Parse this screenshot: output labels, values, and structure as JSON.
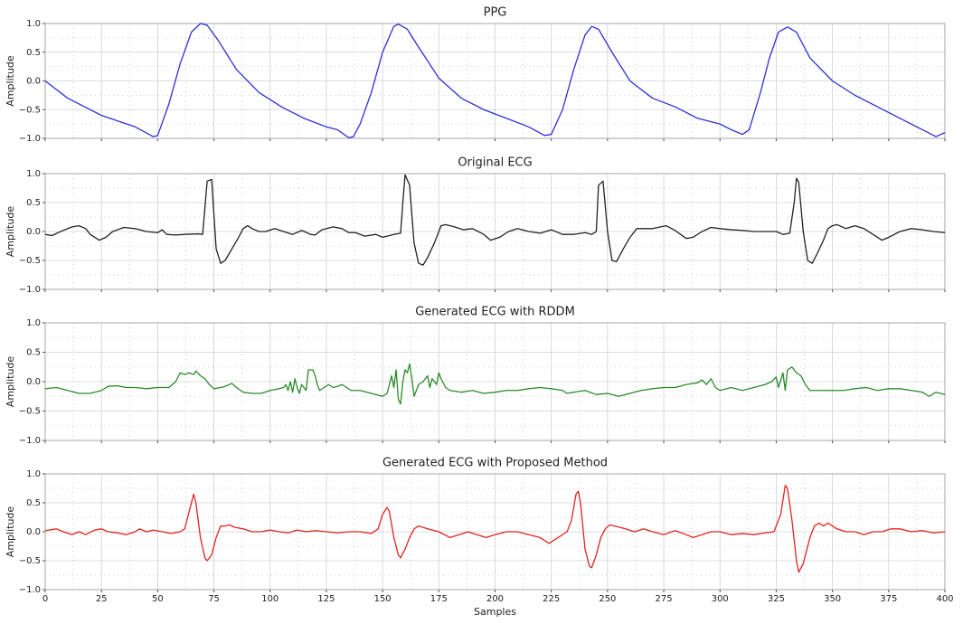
{
  "chart_data": [
    {
      "type": "line",
      "title": "PPG",
      "ylabel": "Amplitude",
      "color": "#2f2fd6",
      "grid": true,
      "xlim": [
        0,
        400
      ],
      "xticks": [
        0,
        25,
        50,
        75,
        100,
        125,
        150,
        175,
        200,
        225,
        250,
        275,
        300,
        325,
        350,
        375,
        400
      ],
      "ylim": [
        -1,
        1
      ],
      "yticks": [
        {
          "value": -1,
          "label": "−1.0"
        },
        {
          "value": -0.5,
          "label": "−0.5"
        },
        {
          "value": 0,
          "label": "0.0"
        },
        {
          "value": 0.5,
          "label": "0.5"
        },
        {
          "value": 1,
          "label": "1.0"
        }
      ],
      "x": [
        0,
        10,
        25,
        40,
        48,
        50,
        55,
        60,
        65,
        69,
        72,
        77,
        85,
        95,
        105,
        115,
        125,
        130,
        135,
        137,
        140,
        145,
        150,
        155,
        157,
        161,
        165,
        175,
        185,
        195,
        205,
        215,
        222,
        225,
        230,
        235,
        240,
        243,
        246,
        252,
        260,
        270,
        280,
        290,
        300,
        305,
        310,
        313,
        318,
        322,
        326,
        330,
        334,
        340,
        350,
        360,
        370,
        380,
        390,
        396,
        400
      ],
      "values": [
        0,
        -0.3,
        -0.6,
        -0.8,
        -0.97,
        -0.95,
        -0.4,
        0.3,
        0.85,
        1.0,
        0.97,
        0.7,
        0.2,
        -0.2,
        -0.45,
        -0.65,
        -0.8,
        -0.85,
        -0.99,
        -0.97,
        -0.75,
        -0.2,
        0.5,
        0.95,
        0.99,
        0.9,
        0.65,
        0.05,
        -0.3,
        -0.5,
        -0.65,
        -0.8,
        -0.95,
        -0.93,
        -0.5,
        0.2,
        0.8,
        0.95,
        0.9,
        0.5,
        0.0,
        -0.3,
        -0.45,
        -0.65,
        -0.75,
        -0.85,
        -0.93,
        -0.85,
        -0.2,
        0.4,
        0.85,
        0.94,
        0.85,
        0.4,
        0.0,
        -0.25,
        -0.45,
        -0.65,
        -0.85,
        -0.97,
        -0.9
      ]
    },
    {
      "type": "line",
      "title": "Original ECG",
      "ylabel": "Amplitude",
      "color": "#222222",
      "grid": true,
      "xlim": [
        0,
        400
      ],
      "xticks": [
        0,
        25,
        50,
        75,
        100,
        125,
        150,
        175,
        200,
        225,
        250,
        275,
        300,
        325,
        350,
        375,
        400
      ],
      "ylim": [
        -1,
        1
      ],
      "yticks": [
        {
          "value": -1,
          "label": "−1.0"
        },
        {
          "value": -0.5,
          "label": "−0.5"
        },
        {
          "value": 0,
          "label": "0.0"
        },
        {
          "value": 0.5,
          "label": "0.5"
        },
        {
          "value": 1,
          "label": "1.0"
        }
      ],
      "x": [
        0,
        3,
        8,
        12,
        15,
        18,
        20,
        24,
        27,
        30,
        35,
        40,
        45,
        50,
        52,
        54,
        58,
        62,
        68,
        70,
        72,
        74,
        76,
        78,
        80,
        83,
        86,
        88,
        90,
        92,
        95,
        98,
        102,
        106,
        110,
        114,
        118,
        120,
        123,
        128,
        132,
        135,
        138,
        142,
        147,
        150,
        155,
        158,
        159,
        160,
        162,
        164,
        166,
        168,
        170,
        173,
        176,
        178,
        182,
        186,
        190,
        195,
        198,
        202,
        206,
        210,
        215,
        220,
        225,
        230,
        235,
        240,
        243,
        245,
        246,
        248,
        250,
        252,
        254,
        257,
        260,
        263,
        266,
        270,
        276,
        280,
        285,
        288,
        292,
        296,
        300,
        305,
        310,
        315,
        320,
        325,
        328,
        331,
        333,
        334,
        335,
        337,
        339,
        341,
        343,
        346,
        348,
        350,
        352,
        356,
        360,
        364,
        368,
        372,
        375,
        380,
        385,
        390,
        395,
        400
      ],
      "values": [
        -0.05,
        -0.07,
        0.02,
        0.08,
        0.1,
        0.05,
        -0.05,
        -0.15,
        -0.1,
        0.0,
        0.07,
        0.05,
        0.0,
        -0.02,
        0.03,
        -0.05,
        -0.06,
        -0.05,
        -0.04,
        -0.05,
        0.87,
        0.9,
        -0.3,
        -0.55,
        -0.5,
        -0.3,
        -0.1,
        0.05,
        0.1,
        0.05,
        0.0,
        0.0,
        0.05,
        0.0,
        -0.05,
        0.02,
        -0.05,
        -0.06,
        0.03,
        0.08,
        0.05,
        -0.02,
        -0.02,
        -0.08,
        -0.05,
        -0.1,
        -0.05,
        -0.03,
        0.5,
        0.98,
        0.8,
        -0.2,
        -0.55,
        -0.58,
        -0.45,
        -0.2,
        0.1,
        0.12,
        0.08,
        0.03,
        0.05,
        -0.05,
        -0.15,
        -0.1,
        0.0,
        0.05,
        0.0,
        -0.03,
        0.03,
        -0.05,
        -0.05,
        -0.02,
        -0.05,
        0.0,
        0.8,
        0.87,
        0.0,
        -0.5,
        -0.52,
        -0.3,
        -0.1,
        0.05,
        0.05,
        0.05,
        0.1,
        0.02,
        -0.12,
        -0.1,
        0.0,
        0.07,
        0.05,
        0.03,
        0.02,
        0.0,
        0.0,
        0.0,
        -0.05,
        -0.03,
        0.5,
        0.92,
        0.85,
        0.0,
        -0.5,
        -0.55,
        -0.4,
        -0.15,
        0.05,
        0.1,
        0.12,
        0.05,
        0.1,
        0.05,
        -0.05,
        -0.15,
        -0.1,
        0.0,
        0.05,
        0.03,
        0.0,
        -0.02
      ]
    },
    {
      "type": "line",
      "title": "Generated ECG with RDDM",
      "ylabel": "Amplitude",
      "color": "#2a8a2a",
      "grid": true,
      "xlim": [
        0,
        400
      ],
      "xticks": [
        0,
        25,
        50,
        75,
        100,
        125,
        150,
        175,
        200,
        225,
        250,
        275,
        300,
        325,
        350,
        375,
        400
      ],
      "ylim": [
        -1,
        1
      ],
      "yticks": [
        {
          "value": -1,
          "label": "−1.0"
        },
        {
          "value": -0.5,
          "label": "−0.5"
        },
        {
          "value": 0,
          "label": "0.0"
        },
        {
          "value": 0.5,
          "label": "0.5"
        },
        {
          "value": 1,
          "label": "1.0"
        }
      ],
      "x": [
        0,
        5,
        10,
        15,
        20,
        25,
        28,
        32,
        36,
        40,
        45,
        50,
        55,
        58,
        60,
        62,
        64,
        66,
        67,
        69,
        71,
        73,
        75,
        78,
        80,
        83,
        85,
        88,
        92,
        96,
        100,
        104,
        106,
        107,
        108,
        109,
        110,
        111,
        112,
        113,
        114,
        116,
        117,
        119,
        120,
        121,
        122,
        124,
        126,
        128,
        130,
        132,
        134,
        136,
        140,
        145,
        150,
        152,
        154,
        155,
        156,
        157,
        158,
        159,
        160,
        161,
        162,
        163,
        164,
        166,
        168,
        170,
        171,
        172,
        174,
        175,
        176,
        178,
        180,
        185,
        190,
        195,
        200,
        205,
        210,
        215,
        220,
        225,
        230,
        232,
        235,
        240,
        245,
        250,
        255,
        260,
        265,
        270,
        275,
        280,
        285,
        290,
        292,
        294,
        296,
        298,
        300,
        305,
        310,
        315,
        320,
        323,
        325,
        326,
        328,
        329,
        330,
        332,
        334,
        336,
        338,
        340,
        345,
        350,
        355,
        360,
        365,
        370,
        375,
        380,
        385,
        390,
        393,
        396,
        400
      ],
      "values": [
        -0.12,
        -0.1,
        -0.15,
        -0.2,
        -0.2,
        -0.15,
        -0.08,
        -0.07,
        -0.1,
        -0.1,
        -0.12,
        -0.1,
        -0.1,
        0.0,
        0.15,
        0.12,
        0.15,
        0.12,
        0.18,
        0.1,
        0.05,
        -0.05,
        -0.12,
        -0.1,
        -0.08,
        -0.03,
        -0.1,
        -0.18,
        -0.2,
        -0.2,
        -0.15,
        -0.12,
        -0.1,
        -0.05,
        -0.15,
        0.0,
        -0.18,
        0.05,
        -0.1,
        -0.2,
        -0.05,
        -0.15,
        0.2,
        0.2,
        0.1,
        -0.05,
        -0.15,
        -0.1,
        -0.05,
        -0.1,
        -0.08,
        -0.05,
        -0.1,
        -0.15,
        -0.15,
        -0.2,
        -0.25,
        -0.2,
        0.1,
        -0.1,
        0.2,
        -0.3,
        -0.38,
        0.0,
        0.2,
        0.15,
        0.3,
        0.05,
        -0.25,
        -0.05,
        0.0,
        0.1,
        -0.1,
        0.05,
        -0.05,
        0.15,
        0.05,
        -0.1,
        -0.15,
        -0.18,
        -0.15,
        -0.2,
        -0.18,
        -0.15,
        -0.15,
        -0.12,
        -0.1,
        -0.12,
        -0.15,
        -0.2,
        -0.18,
        -0.15,
        -0.22,
        -0.2,
        -0.25,
        -0.2,
        -0.15,
        -0.12,
        -0.1,
        -0.1,
        -0.05,
        -0.02,
        0.03,
        -0.05,
        0.05,
        -0.1,
        -0.15,
        -0.1,
        -0.15,
        -0.1,
        -0.05,
        0.0,
        0.08,
        -0.1,
        0.15,
        -0.15,
        0.2,
        0.25,
        0.15,
        0.1,
        -0.05,
        -0.15,
        -0.15,
        -0.15,
        -0.15,
        -0.12,
        -0.1,
        -0.15,
        -0.12,
        -0.12,
        -0.15,
        -0.18,
        -0.25,
        -0.18,
        -0.22
      ]
    },
    {
      "type": "line",
      "title": "Generated ECG with Proposed Method",
      "ylabel": "Amplitude",
      "xlabel": "Samples",
      "color": "#e0241f",
      "grid": true,
      "xlim": [
        0,
        400
      ],
      "xticks": [
        0,
        25,
        50,
        75,
        100,
        125,
        150,
        175,
        200,
        225,
        250,
        275,
        300,
        325,
        350,
        375,
        400
      ],
      "ylim": [
        -1,
        1
      ],
      "yticks": [
        {
          "value": -1,
          "label": "−1.0"
        },
        {
          "value": -0.5,
          "label": "−0.5"
        },
        {
          "value": 0,
          "label": "0.0"
        },
        {
          "value": 0.5,
          "label": "0.5"
        },
        {
          "value": 1,
          "label": "1.0"
        }
      ],
      "x": [
        0,
        5,
        8,
        12,
        15,
        18,
        22,
        25,
        28,
        32,
        36,
        40,
        42,
        45,
        48,
        52,
        56,
        60,
        62,
        64,
        66,
        67,
        69,
        71,
        72,
        74,
        76,
        78,
        80,
        82,
        84,
        88,
        92,
        96,
        100,
        104,
        108,
        112,
        116,
        120,
        125,
        130,
        135,
        140,
        145,
        148,
        150,
        152,
        153,
        155,
        157,
        158,
        160,
        162,
        164,
        166,
        170,
        175,
        180,
        184,
        188,
        192,
        196,
        200,
        205,
        210,
        215,
        220,
        224,
        228,
        232,
        234,
        236,
        237,
        238,
        240,
        242,
        243,
        245,
        247,
        249,
        251,
        253,
        258,
        262,
        266,
        270,
        275,
        280,
        285,
        288,
        292,
        296,
        300,
        305,
        310,
        315,
        320,
        324,
        327,
        329,
        330,
        332,
        334,
        335,
        337,
        340,
        342,
        344,
        346,
        348,
        352,
        356,
        360,
        364,
        368,
        372,
        376,
        380,
        385,
        390,
        395,
        400
      ],
      "values": [
        0.02,
        0.05,
        0.0,
        -0.05,
        0.0,
        -0.05,
        0.03,
        0.05,
        0.0,
        -0.02,
        -0.05,
        0.0,
        0.05,
        0.0,
        0.03,
        0.0,
        -0.03,
        0.0,
        0.05,
        0.35,
        0.65,
        0.5,
        -0.1,
        -0.45,
        -0.5,
        -0.4,
        -0.1,
        0.1,
        0.1,
        0.12,
        0.08,
        0.05,
        0.0,
        0.0,
        0.03,
        0.0,
        -0.02,
        0.03,
        0.0,
        0.02,
        0.0,
        -0.02,
        0.0,
        0.0,
        -0.03,
        0.05,
        0.3,
        0.42,
        0.35,
        -0.1,
        -0.4,
        -0.45,
        -0.3,
        -0.1,
        0.05,
        0.1,
        0.05,
        0.0,
        -0.1,
        -0.05,
        0.0,
        -0.05,
        -0.1,
        -0.05,
        0.0,
        0.0,
        -0.05,
        -0.1,
        -0.2,
        -0.1,
        0.0,
        0.2,
        0.65,
        0.7,
        0.5,
        -0.3,
        -0.6,
        -0.62,
        -0.4,
        -0.1,
        0.05,
        0.12,
        0.1,
        0.05,
        0.0,
        0.05,
        0.0,
        -0.05,
        0.02,
        -0.05,
        -0.1,
        -0.05,
        0.0,
        0.0,
        -0.05,
        -0.03,
        -0.05,
        -0.02,
        0.0,
        0.3,
        0.8,
        0.75,
        0.2,
        -0.5,
        -0.7,
        -0.55,
        -0.1,
        0.1,
        0.15,
        0.1,
        0.15,
        0.05,
        0.0,
        0.0,
        -0.05,
        0.0,
        0.0,
        0.05,
        0.05,
        0.0,
        0.02,
        -0.02,
        0.0
      ]
    }
  ]
}
